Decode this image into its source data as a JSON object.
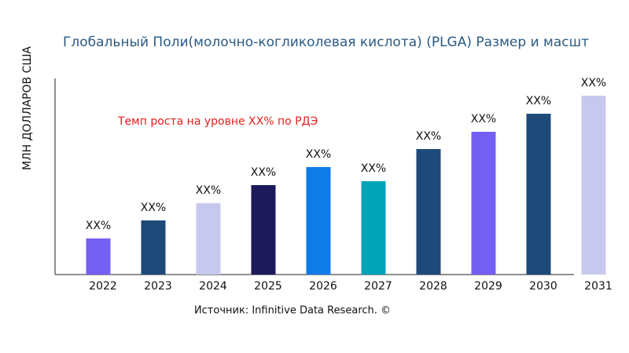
{
  "chart_data": {
    "type": "bar",
    "title": "Глобальный Поли(молочно-когликолевая кислота) (PLGA) Размер и масшт",
    "y_label": "МЛН ДОЛЛАРОВ США",
    "annotation": "Темп роста на уровне XX% по РДЭ",
    "source": "Источник: Infinitive Data Research. ©",
    "categories": [
      "2022",
      "2023",
      "2024",
      "2025",
      "2026",
      "2027",
      "2028",
      "2029",
      "2030",
      "2031"
    ],
    "values": [
      46,
      69,
      91,
      114,
      137,
      119,
      160,
      182,
      205,
      228
    ],
    "value_labels": [
      "XX%",
      "XX%",
      "XX%",
      "XX%",
      "XX%",
      "XX%",
      "XX%",
      "XX%",
      "XX%",
      "XX%"
    ],
    "colors": [
      "#7360f2",
      "#1e4a7a",
      "#c8c8ef",
      "#1c1a5a",
      "#0f7be6",
      "#00a3b8",
      "#1e4a7a",
      "#7360f2",
      "#1e4a7a",
      "#c8c8ef"
    ],
    "ylim": [
      0,
      250
    ]
  }
}
